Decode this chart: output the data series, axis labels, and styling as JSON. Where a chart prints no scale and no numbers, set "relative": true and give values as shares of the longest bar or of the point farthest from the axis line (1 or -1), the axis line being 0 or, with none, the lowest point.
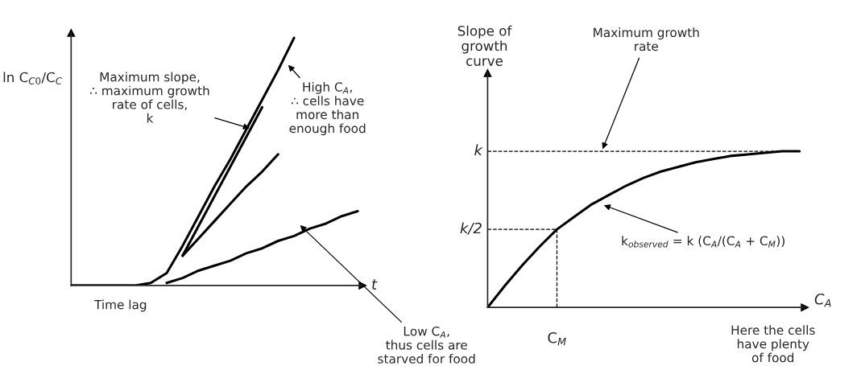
{
  "chart_data": [
    {
      "type": "line",
      "relative": true,
      "xlabel": "t",
      "ylabel": "ln C$_{C0}$/C$_{C}$",
      "categories": [
        null,
        null,
        null,
        null,
        null,
        null,
        null,
        null,
        null,
        null,
        null,
        null,
        null,
        null,
        null,
        null,
        null,
        null,
        null
      ],
      "series": [
        {
          "color": "#000000",
          "values": [
            0,
            0,
            0,
            0,
            0,
            0.01,
            0.05,
            0.16,
            0.28,
            0.4,
            0.51,
            0.63,
            0.75,
            0.87,
            1.0,
            null,
            null,
            null,
            null
          ]
        },
        {
          "color": "#000000",
          "values": [
            null,
            null,
            null,
            null,
            null,
            null,
            null,
            0.12,
            0.24,
            0.36,
            0.48,
            0.6,
            0.72,
            null,
            null,
            null,
            null,
            null,
            null
          ]
        },
        {
          "color": "#000000",
          "values": [
            null,
            null,
            null,
            null,
            null,
            null,
            null,
            0.12,
            0.19,
            0.26,
            0.33,
            0.4,
            0.46,
            0.53,
            null,
            null,
            null,
            null,
            null
          ]
        },
        {
          "color": "#000000",
          "values": [
            null,
            null,
            null,
            null,
            null,
            null,
            0.01,
            0.03,
            0.06,
            0.08,
            0.1,
            0.13,
            0.15,
            0.18,
            0.2,
            0.23,
            0.25,
            0.28,
            0.3
          ]
        }
      ],
      "annotations": [
        "Maximum slope,\n∴ maximum growth\nrate of cells,\nk",
        "High C$_{A}$,\n∴ cells have\nmore than\nenough food",
        "Low C$_{A}$,\nthus cells are\nstarved for food",
        "Time lag"
      ],
      "legend": false,
      "marker": "none",
      "line_style": "solid"
    },
    {
      "type": "line",
      "relative": true,
      "xlabel": "C$_{A}$",
      "ylabel": "Slope of\ngrowth\ncurve",
      "categories": [
        null,
        null,
        null,
        null,
        null,
        null,
        null,
        null,
        null,
        null,
        null,
        null,
        null,
        null,
        null,
        null,
        null,
        null,
        null
      ],
      "series": [
        {
          "color": "#000000",
          "values": [
            0,
            0.14,
            0.27,
            0.39,
            0.5,
            0.58,
            0.66,
            0.72,
            0.78,
            0.83,
            0.87,
            0.9,
            0.93,
            0.95,
            0.97,
            0.98,
            0.99,
            1.0,
            1.0
          ]
        }
      ],
      "ref_lines": [
        {
          "axis": "y",
          "value": 1,
          "label": "k",
          "line_style": "dashed"
        },
        {
          "axis": "y",
          "value": 0.5,
          "label": "k/2",
          "line_style": "dashed"
        }
      ],
      "annotations": [
        "Maximum growth\nrate",
        "k$_{observed}$ = k (C$_{A}$/(C$_{A}$ + C$_{M}$))",
        "Here the cells\nhave plenty\nof food",
        "C$_{M}$"
      ],
      "legend": false,
      "marker": "none",
      "line_style": "solid"
    }
  ]
}
